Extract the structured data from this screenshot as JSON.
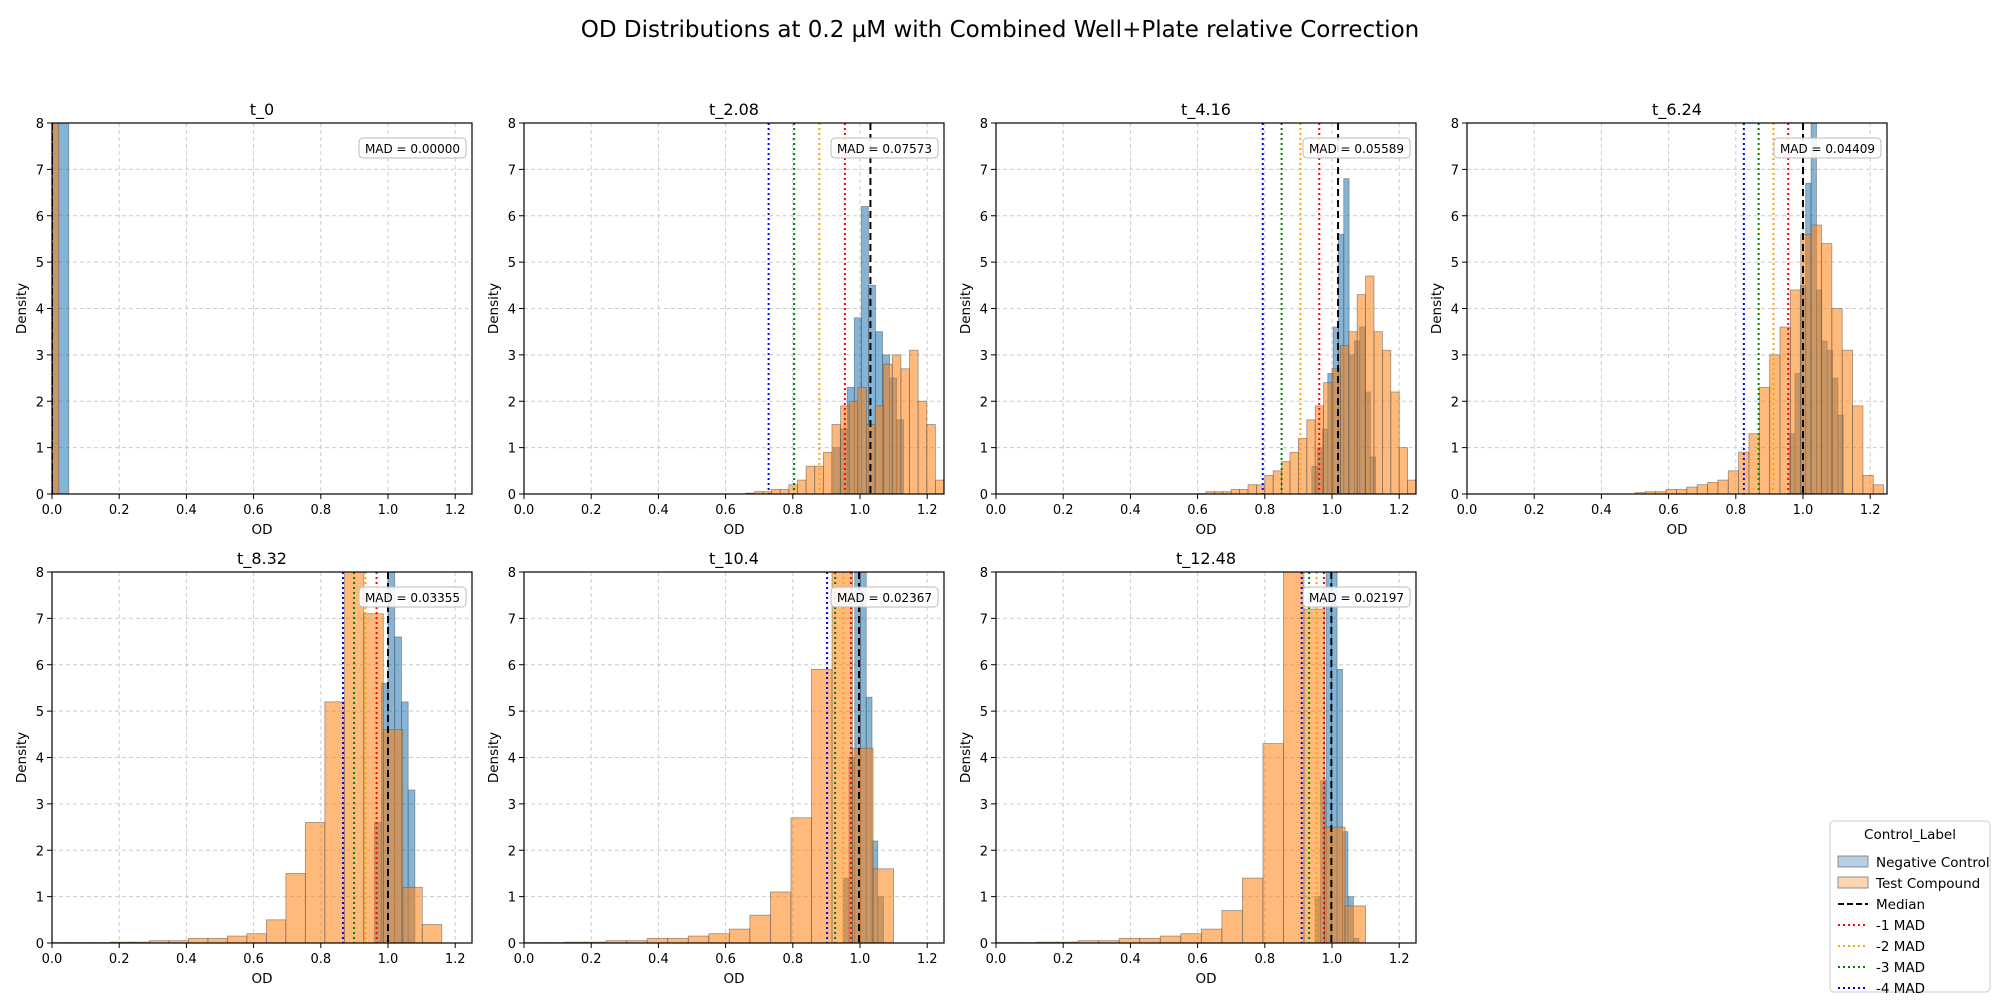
{
  "chart_data": {
    "type": "histogram",
    "title": "OD Distributions at 0.2 µM with Combined Well+Plate relative Correction",
    "xlabel": "OD",
    "ylabel": "Density",
    "xlim": [
      0.0,
      1.25
    ],
    "ylim": [
      0,
      8
    ],
    "xticks": [
      "0.0",
      "0.2",
      "0.4",
      "0.6",
      "0.8",
      "1.0",
      "1.2"
    ],
    "yticks": [
      "0",
      "1",
      "2",
      "3",
      "4",
      "5",
      "6",
      "7",
      "8"
    ],
    "grid": true,
    "colors": {
      "negative_control": "#b7d0e4",
      "test_compound": "#fdd6b1",
      "overlap": "#cfb8a1",
      "median": "#000000",
      "mad1": "#ff0000",
      "mad2": "#ffa500",
      "mad3": "#008000",
      "mad4": "#0000ff"
    },
    "legend": {
      "title": "Control_Label",
      "placement": "bottom-right outside",
      "entries": [
        {
          "label": "Negative Control",
          "kind": "patch",
          "color": "#b7d0e4"
        },
        {
          "label": "Test Compound",
          "kind": "patch",
          "color": "#fdd6b1"
        },
        {
          "label": "Median",
          "kind": "dashed",
          "color": "#000000"
        },
        {
          "label": "-1 MAD",
          "kind": "dotted",
          "color": "#ff0000"
        },
        {
          "label": "-2 MAD",
          "kind": "dotted",
          "color": "#ffa500"
        },
        {
          "label": "-3 MAD",
          "kind": "dotted",
          "color": "#008000"
        },
        {
          "label": "-4 MAD",
          "kind": "dotted",
          "color": "#0000ff"
        }
      ]
    },
    "panels": [
      {
        "title": "t_0",
        "mad_text": "MAD = 0.00000",
        "median": 0.0,
        "mad_lines": [
          0.0,
          0.0,
          0.0,
          0.0
        ],
        "neg": {
          "x0": 0.0,
          "x1": 0.05,
          "values": [
            8.2
          ]
        },
        "test": {
          "x0": 0.0,
          "x1": 0.02,
          "values": [
            8.2
          ]
        }
      },
      {
        "title": "t_2.08",
        "mad_text": "MAD = 0.07573",
        "median": 1.031,
        "mad_lines": [
          0.955,
          0.879,
          0.804,
          0.728
        ],
        "neg": {
          "x0": 0.92,
          "x1": 1.13,
          "values": [
            1.0,
            1.4,
            2.3,
            3.8,
            6.2,
            4.5,
            3.5,
            3.0,
            2.5,
            1.6
          ]
        },
        "test": {
          "x0": 0.66,
          "x1": 1.25,
          "values": [
            0.02,
            0.05,
            0.05,
            0.1,
            0.1,
            0.2,
            0.3,
            0.6,
            0.6,
            0.9,
            1.5,
            1.9,
            2.0,
            2.3,
            1.5,
            1.9,
            2.8,
            3.0,
            2.7,
            3.1,
            2.0,
            1.5,
            0.3
          ]
        }
      },
      {
        "title": "t_4.16",
        "mad_text": "MAD = 0.05589",
        "median": 1.018,
        "mad_lines": [
          0.962,
          0.906,
          0.85,
          0.794
        ],
        "neg": {
          "x0": 0.94,
          "x1": 1.13,
          "values": [
            0.6,
            1.0,
            1.4,
            2.6,
            3.6,
            5.6,
            6.8,
            3.0,
            3.3,
            3.6,
            2.2,
            0.8
          ]
        },
        "test": {
          "x0": 0.6,
          "x1": 1.25,
          "values": [
            0.01,
            0.05,
            0.05,
            0.05,
            0.1,
            0.1,
            0.2,
            0.2,
            0.4,
            0.5,
            0.7,
            0.9,
            1.2,
            1.6,
            1.9,
            2.4,
            2.7,
            3.2,
            3.5,
            4.3,
            4.7,
            3.5,
            3.1,
            2.2,
            1.0,
            0.3
          ]
        }
      },
      {
        "title": "t_6.24",
        "mad_text": "MAD = 0.04409",
        "median": 1.0,
        "mad_lines": [
          0.956,
          0.912,
          0.868,
          0.824
        ],
        "neg": {
          "x0": 0.96,
          "x1": 1.12,
          "values": [
            1.3,
            2.6,
            4.5,
            6.7,
            8.1,
            4.4,
            3.3,
            3.1,
            2.5,
            1.7
          ]
        },
        "test": {
          "x0": 0.5,
          "x1": 1.24,
          "values": [
            0.03,
            0.05,
            0.05,
            0.1,
            0.1,
            0.15,
            0.2,
            0.25,
            0.3,
            0.5,
            0.9,
            1.3,
            2.3,
            3.0,
            3.6,
            4.4,
            5.6,
            5.8,
            5.4,
            4.0,
            3.1,
            1.9,
            0.4,
            0.2
          ]
        }
      },
      {
        "title": "t_8.32",
        "mad_text": "MAD = 0.03355",
        "median": 1.0,
        "mad_lines": [
          0.966,
          0.933,
          0.899,
          0.866
        ],
        "neg": {
          "x0": 0.96,
          "x1": 1.08,
          "values": [
            2.6,
            5.6,
            8.1,
            6.6,
            5.2,
            3.3
          ]
        },
        "test": {
          "x0": 0.0,
          "x1": 1.16,
          "values": [
            0.01,
            0.01,
            0.01,
            0.02,
            0.02,
            0.05,
            0.05,
            0.1,
            0.1,
            0.15,
            0.2,
            0.5,
            1.5,
            2.6,
            5.2,
            8.1,
            7.1,
            4.6,
            1.2,
            0.4
          ]
        }
      },
      {
        "title": "t_10.4",
        "mad_text": "MAD = 0.02367",
        "median": 0.997,
        "mad_lines": [
          0.973,
          0.95,
          0.926,
          0.902
        ],
        "neg": {
          "x0": 0.95,
          "x1": 1.07,
          "values": [
            1.4,
            4.0,
            8.1,
            8.1,
            5.3,
            2.2,
            1.0
          ]
        },
        "test": {
          "x0": 0.0,
          "x1": 1.1,
          "values": [
            0.01,
            0.01,
            0.02,
            0.02,
            0.05,
            0.05,
            0.1,
            0.1,
            0.15,
            0.2,
            0.3,
            0.6,
            1.1,
            2.7,
            5.9,
            8.1,
            4.2,
            1.6
          ]
        }
      },
      {
        "title": "t_12.48",
        "mad_text": "MAD = 0.02197",
        "median": 0.998,
        "mad_lines": [
          0.976,
          0.954,
          0.932,
          0.91
        ],
        "neg": {
          "x0": 0.95,
          "x1": 1.08,
          "values": [
            1.0,
            3.5,
            8.1,
            8.1,
            5.9,
            2.4,
            1.0,
            0.1
          ]
        },
        "test": {
          "x0": 0.0,
          "x1": 1.1,
          "values": [
            0.01,
            0.01,
            0.02,
            0.02,
            0.05,
            0.05,
            0.1,
            0.1,
            0.15,
            0.2,
            0.3,
            0.7,
            1.4,
            4.3,
            8.1,
            7.2,
            2.5,
            0.8
          ]
        }
      }
    ]
  }
}
